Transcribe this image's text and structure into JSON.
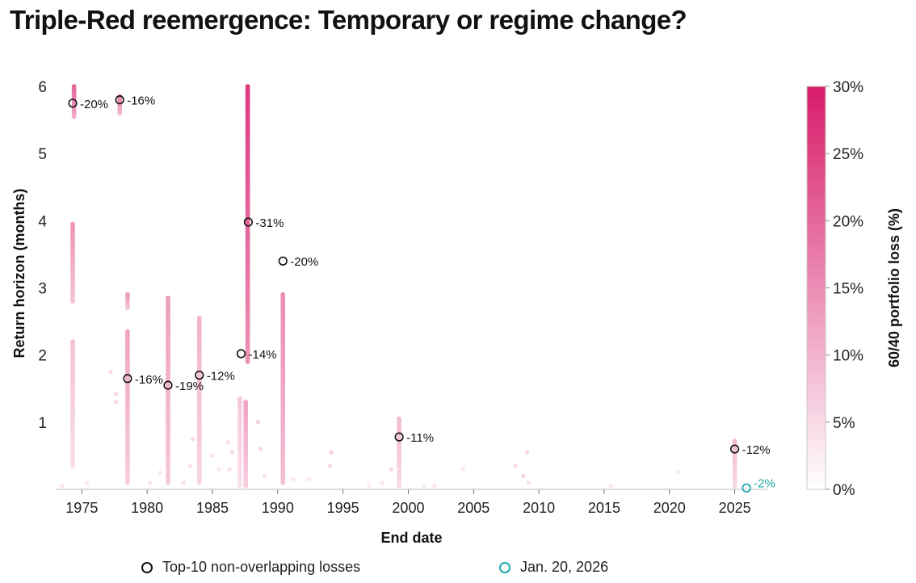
{
  "title": "Triple-Red reemergence: Temporary or regime change?",
  "chart_data": {
    "type": "scatter",
    "xlabel": "End date",
    "ylabel": "Return horizon (months)",
    "colorbar_label": "60/40 portfolio loss (%)",
    "xlim": [
      1973,
      2027.5
    ],
    "ylim": [
      0,
      6
    ],
    "x_ticks": [
      "1975",
      "1980",
      "1985",
      "1990",
      "1995",
      "2000",
      "2005",
      "2010",
      "2015",
      "2020",
      "2025"
    ],
    "y_ticks": [
      "1",
      "2",
      "3",
      "4",
      "5",
      "6"
    ],
    "colorbar_ticks": [
      "0%",
      "5%",
      "10%",
      "15%",
      "20%",
      "25%",
      "30%"
    ],
    "colorbar_range": [
      0,
      30
    ],
    "colors": {
      "low": "#ffffff",
      "high": "#d81b6a",
      "marker_outline": "#111111",
      "current": "#1fa8a8"
    },
    "clusters": [
      {
        "x": 1974.3,
        "y_from": 0.35,
        "y_to": 2.2,
        "loss": 8
      },
      {
        "x": 1974.3,
        "y_from": 2.8,
        "y_to": 3.95,
        "loss": 14
      },
      {
        "x": 1974.4,
        "y_from": 5.55,
        "y_to": 6.0,
        "loss": 20
      },
      {
        "x": 1977.9,
        "y_from": 5.6,
        "y_to": 5.85,
        "loss": 16
      },
      {
        "x": 1978.5,
        "y_from": 0.1,
        "y_to": 2.35,
        "loss": 12
      },
      {
        "x": 1978.5,
        "y_from": 2.7,
        "y_to": 2.9,
        "loss": 13
      },
      {
        "x": 1981.6,
        "y_from": 0.1,
        "y_to": 2.85,
        "loss": 13
      },
      {
        "x": 1984.0,
        "y_from": 0.1,
        "y_to": 2.55,
        "loss": 10
      },
      {
        "x": 1987.1,
        "y_from": 0.05,
        "y_to": 1.35,
        "loss": 7
      },
      {
        "x": 1987.55,
        "y_from": 0.05,
        "y_to": 1.3,
        "loss": 12
      },
      {
        "x": 1987.7,
        "y_from": 1.9,
        "y_to": 6.0,
        "loss": 26
      },
      {
        "x": 1990.4,
        "y_from": 0.1,
        "y_to": 2.9,
        "loss": 15
      },
      {
        "x": 1999.3,
        "y_from": 0.05,
        "y_to": 1.05,
        "loss": 9
      },
      {
        "x": 2025.0,
        "y_from": 0.05,
        "y_to": 0.72,
        "loss": 9
      }
    ],
    "scattered_points": [
      [
        1973.5,
        0.05,
        3
      ],
      [
        1975.4,
        0.1,
        3
      ],
      [
        1977.2,
        1.75,
        5
      ],
      [
        1977.6,
        1.3,
        5
      ],
      [
        1977.6,
        1.42,
        5
      ],
      [
        1980.2,
        0.1,
        3
      ],
      [
        1981.0,
        0.25,
        3
      ],
      [
        1982.8,
        0.1,
        4
      ],
      [
        1983.5,
        0.75,
        5
      ],
      [
        1983.3,
        0.35,
        4
      ],
      [
        1985.0,
        0.5,
        4
      ],
      [
        1985.5,
        0.3,
        3
      ],
      [
        1986.2,
        0.7,
        4
      ],
      [
        1986.3,
        0.3,
        4
      ],
      [
        1986.5,
        0.55,
        5
      ],
      [
        1988.5,
        1.0,
        6
      ],
      [
        1988.7,
        0.6,
        5
      ],
      [
        1989.0,
        0.2,
        4
      ],
      [
        1991.2,
        0.15,
        3
      ],
      [
        1992.4,
        0.15,
        3
      ],
      [
        1994.0,
        0.35,
        5
      ],
      [
        1994.1,
        0.55,
        6
      ],
      [
        1997.0,
        0.05,
        3
      ],
      [
        1998.0,
        0.1,
        3
      ],
      [
        1998.7,
        0.3,
        5
      ],
      [
        2001.2,
        0.05,
        3
      ],
      [
        2002.0,
        0.05,
        3
      ],
      [
        2004.2,
        0.3,
        3
      ],
      [
        2008.2,
        0.35,
        5
      ],
      [
        2008.8,
        0.2,
        5
      ],
      [
        2009.1,
        0.55,
        5
      ],
      [
        2009.2,
        0.1,
        4
      ],
      [
        2015.5,
        0.05,
        3
      ],
      [
        2020.7,
        0.25,
        3
      ]
    ],
    "top10_losses": [
      {
        "x": 1974.3,
        "y": 5.75,
        "label": "-20%"
      },
      {
        "x": 1977.9,
        "y": 5.8,
        "label": "-16%"
      },
      {
        "x": 1978.5,
        "y": 1.65,
        "label": "-16%"
      },
      {
        "x": 1981.6,
        "y": 1.55,
        "label": "-19%"
      },
      {
        "x": 1984.0,
        "y": 1.7,
        "label": "-12%"
      },
      {
        "x": 1987.2,
        "y": 2.02,
        "label": "-14%"
      },
      {
        "x": 1987.75,
        "y": 3.98,
        "label": "-31%"
      },
      {
        "x": 1990.4,
        "y": 3.4,
        "label": "-20%"
      },
      {
        "x": 1999.3,
        "y": 0.78,
        "label": "-11%"
      },
      {
        "x": 2025.0,
        "y": 0.6,
        "label": "-12%"
      }
    ],
    "current": {
      "x": 2025.9,
      "y": 0.02,
      "label": "-2%"
    },
    "legend": [
      {
        "label": "Top-10 non-overlapping losses",
        "style": "outline-black"
      },
      {
        "label": "Jan. 20, 2026",
        "style": "outline-teal"
      }
    ]
  }
}
